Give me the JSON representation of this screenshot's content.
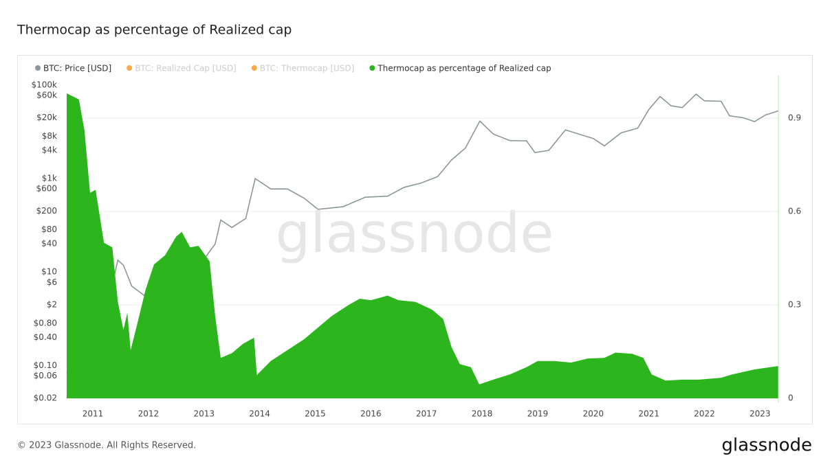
{
  "chart_data": {
    "type": "line_area",
    "title": "Thermocap as percentage of Realized cap",
    "watermark": "glassnode",
    "footer": "© 2023 Glassnode. All Rights Reserved.",
    "logo": "glassnode",
    "legend": [
      {
        "name": "BTC: Price [USD]",
        "color": "#8a9699",
        "enabled": true
      },
      {
        "name": "BTC: Realized Cap [USD]",
        "color": "#f7931a",
        "enabled": false
      },
      {
        "name": "BTC: Thermocap [USD]",
        "color": "#f7931a",
        "enabled": false
      },
      {
        "name": "Thermocap as percentage of Realized cap",
        "color": "#2db51e",
        "enabled": true
      }
    ],
    "xlim": [
      2010.53,
      2023.33
    ],
    "xticks": [
      2011,
      2012,
      2013,
      2014,
      2015,
      2016,
      2017,
      2018,
      2019,
      2020,
      2021,
      2022,
      2023
    ],
    "log_y": true,
    "ylim": [
      0.0163,
      160000
    ],
    "yticks": [
      {
        "value": 100000,
        "label": "$100k"
      },
      {
        "value": 60000,
        "label": "$60k"
      },
      {
        "value": 20000,
        "label": "$20k"
      },
      {
        "value": 8000,
        "label": "$8k"
      },
      {
        "value": 4000,
        "label": "$4k"
      },
      {
        "value": 1000,
        "label": "$1k"
      },
      {
        "value": 600,
        "label": "$600"
      },
      {
        "value": 200,
        "label": "$200"
      },
      {
        "value": 80,
        "label": "$80"
      },
      {
        "value": 40,
        "label": "$40"
      },
      {
        "value": 10,
        "label": "$10"
      },
      {
        "value": 6,
        "label": "$6"
      },
      {
        "value": 2,
        "label": "$2"
      },
      {
        "value": 0.8,
        "label": "$0.80"
      },
      {
        "value": 0.4,
        "label": "$0.40"
      },
      {
        "value": 0.1,
        "label": "$0.10"
      },
      {
        "value": 0.06,
        "label": "$0.06"
      },
      {
        "value": 0.02,
        "label": "$0.02"
      }
    ],
    "y2lim": [
      -0.013,
      1.037
    ],
    "y2ticks": [
      0,
      0.3,
      0.6,
      0.9
    ],
    "grid": true,
    "series": [
      {
        "name": "BTC: Price [USD]",
        "color": "#8a9699",
        "kind": "line",
        "x": [
          2010.53,
          2010.9,
          2011.2,
          2011.45,
          2011.55,
          2011.7,
          2011.95,
          2012.3,
          2012.6,
          2012.9,
          2013.2,
          2013.3,
          2013.5,
          2013.75,
          2013.92,
          2014.2,
          2014.5,
          2014.8,
          2015.05,
          2015.5,
          2015.9,
          2016.3,
          2016.6,
          2016.9,
          2017.2,
          2017.45,
          2017.7,
          2017.96,
          2018.2,
          2018.5,
          2018.8,
          2018.95,
          2019.2,
          2019.5,
          2019.8,
          2020.0,
          2020.2,
          2020.5,
          2020.8,
          2021.0,
          2021.2,
          2021.4,
          2021.6,
          2021.85,
          2022.0,
          2022.3,
          2022.45,
          2022.7,
          2022.9,
          2023.1,
          2023.33
        ],
        "values": [
          0.07,
          0.25,
          0.9,
          18,
          14,
          5,
          3,
          5,
          11,
          13,
          40,
          130,
          90,
          140,
          1000,
          600,
          600,
          380,
          220,
          250,
          400,
          420,
          650,
          800,
          1100,
          2500,
          4500,
          17000,
          9000,
          6500,
          6400,
          3600,
          4000,
          11000,
          8500,
          7200,
          5000,
          9500,
          12000,
          30000,
          57000,
          36000,
          33000,
          64000,
          46000,
          45000,
          22000,
          20000,
          16500,
          23000,
          28000
        ]
      },
      {
        "name": "Thermocap as percentage of Realized cap",
        "color": "#2db51e",
        "kind": "area",
        "axis": "y2",
        "x": [
          2010.53,
          2010.75,
          2010.85,
          2010.95,
          2011.05,
          2011.2,
          2011.35,
          2011.45,
          2011.55,
          2011.62,
          2011.68,
          2011.8,
          2011.95,
          2012.1,
          2012.3,
          2012.5,
          2012.6,
          2012.75,
          2012.9,
          2013.1,
          2013.2,
          2013.3,
          2013.5,
          2013.7,
          2013.9,
          2013.95,
          2014.2,
          2014.5,
          2014.8,
          2015.0,
          2015.3,
          2015.6,
          2015.8,
          2016.0,
          2016.3,
          2016.5,
          2016.8,
          2017.1,
          2017.3,
          2017.45,
          2017.6,
          2017.8,
          2017.95,
          2018.2,
          2018.5,
          2018.8,
          2019.0,
          2019.3,
          2019.6,
          2019.9,
          2020.2,
          2020.4,
          2020.7,
          2020.9,
          2021.05,
          2021.3,
          2021.6,
          2021.9,
          2022.3,
          2022.5,
          2022.9,
          2023.33
        ],
        "values": [
          0.98,
          0.96,
          0.86,
          0.66,
          0.67,
          0.5,
          0.485,
          0.31,
          0.22,
          0.275,
          0.155,
          0.24,
          0.35,
          0.43,
          0.46,
          0.52,
          0.535,
          0.485,
          0.49,
          0.44,
          0.265,
          0.13,
          0.145,
          0.175,
          0.195,
          0.075,
          0.12,
          0.155,
          0.19,
          0.22,
          0.265,
          0.3,
          0.32,
          0.315,
          0.33,
          0.315,
          0.31,
          0.285,
          0.255,
          0.165,
          0.11,
          0.1,
          0.045,
          0.06,
          0.077,
          0.1,
          0.12,
          0.12,
          0.115,
          0.128,
          0.13,
          0.147,
          0.143,
          0.13,
          0.077,
          0.057,
          0.06,
          0.06,
          0.066,
          0.077,
          0.093,
          0.104
        ]
      }
    ]
  }
}
